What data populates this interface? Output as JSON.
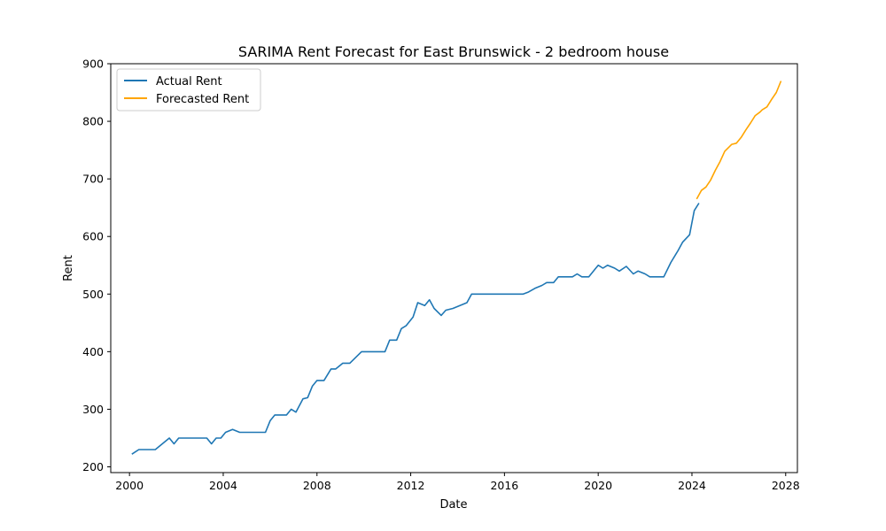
{
  "chart_data": {
    "type": "line",
    "title": "SARIMA Rent Forecast for East Brunswick - 2 bedroom house",
    "xlabel": "Date",
    "ylabel": "Rent",
    "xlim": [
      1999.2,
      2028.5
    ],
    "ylim": [
      190,
      900
    ],
    "x_ticks": [
      2000,
      2004,
      2008,
      2012,
      2016,
      2020,
      2024,
      2028
    ],
    "y_ticks": [
      200,
      300,
      400,
      500,
      600,
      700,
      800,
      900
    ],
    "grid": false,
    "legend_position": "top-left",
    "series": [
      {
        "name": "Actual Rent",
        "color": "#1f77b4",
        "points": [
          [
            2000.1,
            222
          ],
          [
            2000.4,
            230
          ],
          [
            2001.1,
            230
          ],
          [
            2001.7,
            250
          ],
          [
            2001.9,
            240
          ],
          [
            2002.1,
            250
          ],
          [
            2002.5,
            250
          ],
          [
            2003.0,
            250
          ],
          [
            2003.3,
            250
          ],
          [
            2003.5,
            240
          ],
          [
            2003.7,
            250
          ],
          [
            2003.9,
            250
          ],
          [
            2004.1,
            260
          ],
          [
            2004.4,
            265
          ],
          [
            2004.7,
            260
          ],
          [
            2005.0,
            260
          ],
          [
            2005.5,
            260
          ],
          [
            2005.8,
            260
          ],
          [
            2006.0,
            280
          ],
          [
            2006.2,
            290
          ],
          [
            2006.5,
            290
          ],
          [
            2006.7,
            290
          ],
          [
            2006.9,
            300
          ],
          [
            2007.1,
            295
          ],
          [
            2007.4,
            318
          ],
          [
            2007.6,
            320
          ],
          [
            2007.8,
            340
          ],
          [
            2008.0,
            350
          ],
          [
            2008.3,
            350
          ],
          [
            2008.6,
            370
          ],
          [
            2008.8,
            370
          ],
          [
            2009.1,
            380
          ],
          [
            2009.4,
            380
          ],
          [
            2009.9,
            400
          ],
          [
            2010.2,
            400
          ],
          [
            2010.6,
            400
          ],
          [
            2010.9,
            400
          ],
          [
            2011.1,
            420
          ],
          [
            2011.4,
            420
          ],
          [
            2011.6,
            440
          ],
          [
            2011.8,
            445
          ],
          [
            2012.1,
            460
          ],
          [
            2012.3,
            485
          ],
          [
            2012.6,
            480
          ],
          [
            2012.8,
            490
          ],
          [
            2013.0,
            475
          ],
          [
            2013.3,
            463
          ],
          [
            2013.5,
            472
          ],
          [
            2013.8,
            475
          ],
          [
            2014.1,
            480
          ],
          [
            2014.4,
            485
          ],
          [
            2014.6,
            500
          ],
          [
            2015.0,
            500
          ],
          [
            2015.5,
            500
          ],
          [
            2016.0,
            500
          ],
          [
            2016.5,
            500
          ],
          [
            2016.8,
            500
          ],
          [
            2017.0,
            503
          ],
          [
            2017.3,
            510
          ],
          [
            2017.6,
            515
          ],
          [
            2017.8,
            520
          ],
          [
            2018.1,
            520
          ],
          [
            2018.3,
            530
          ],
          [
            2018.6,
            530
          ],
          [
            2018.9,
            530
          ],
          [
            2019.1,
            535
          ],
          [
            2019.3,
            530
          ],
          [
            2019.6,
            530
          ],
          [
            2019.9,
            545
          ],
          [
            2020.0,
            550
          ],
          [
            2020.2,
            545
          ],
          [
            2020.4,
            550
          ],
          [
            2020.7,
            545
          ],
          [
            2020.9,
            540
          ],
          [
            2021.2,
            548
          ],
          [
            2021.5,
            535
          ],
          [
            2021.7,
            540
          ],
          [
            2022.0,
            535
          ],
          [
            2022.2,
            530
          ],
          [
            2022.5,
            530
          ],
          [
            2022.8,
            530
          ],
          [
            2023.1,
            555
          ],
          [
            2023.4,
            575
          ],
          [
            2023.6,
            590
          ],
          [
            2023.9,
            603
          ],
          [
            2024.1,
            645
          ],
          [
            2024.3,
            658
          ]
        ]
      },
      {
        "name": "Forecasted Rent",
        "color": "#ffa500",
        "points": [
          [
            2024.2,
            665
          ],
          [
            2024.4,
            680
          ],
          [
            2024.6,
            686
          ],
          [
            2024.8,
            698
          ],
          [
            2025.0,
            715
          ],
          [
            2025.2,
            730
          ],
          [
            2025.4,
            748
          ],
          [
            2025.6,
            756
          ],
          [
            2025.7,
            760
          ],
          [
            2025.9,
            762
          ],
          [
            2026.1,
            772
          ],
          [
            2026.3,
            785
          ],
          [
            2026.5,
            797
          ],
          [
            2026.7,
            810
          ],
          [
            2026.9,
            816
          ],
          [
            2027.0,
            820
          ],
          [
            2027.2,
            825
          ],
          [
            2027.4,
            838
          ],
          [
            2027.6,
            850
          ],
          [
            2027.8,
            870
          ]
        ]
      }
    ]
  }
}
